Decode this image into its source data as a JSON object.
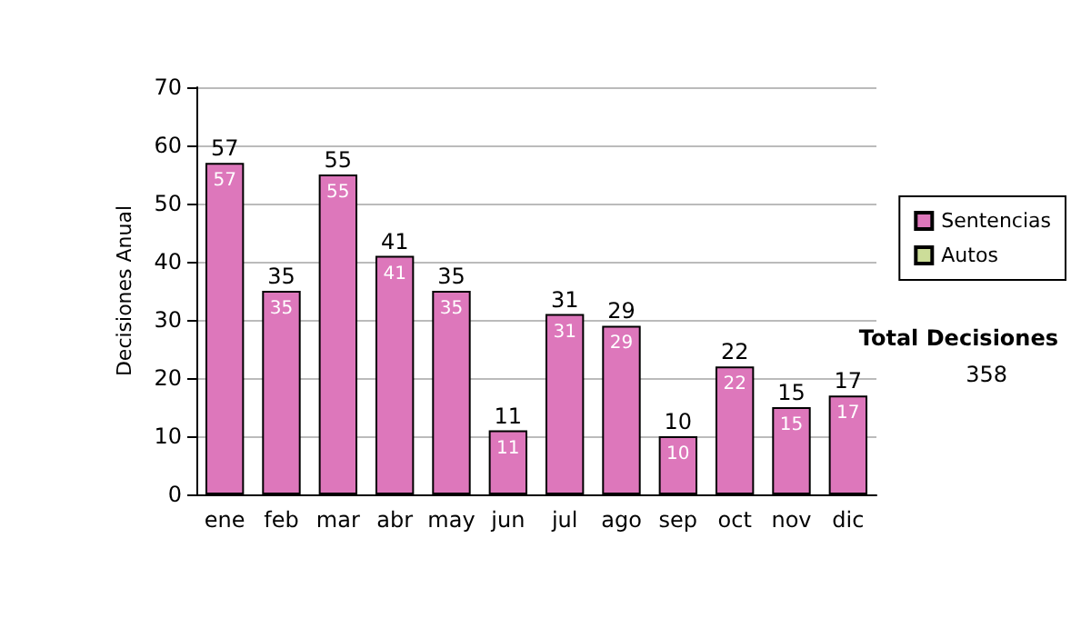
{
  "chart_data": {
    "type": "bar",
    "stacked": true,
    "ylabel": "Decisiones Anual",
    "categories": [
      "ene",
      "feb",
      "mar",
      "abr",
      "may",
      "jun",
      "jul",
      "ago",
      "sep",
      "oct",
      "nov",
      "dic"
    ],
    "series": [
      {
        "name": "Sentencias",
        "color": "#dd77bb",
        "values": [
          57,
          35,
          55,
          41,
          35,
          11,
          31,
          29,
          10,
          22,
          15,
          17
        ],
        "value_labels": [
          "57",
          "35",
          "55",
          "41",
          "35",
          "11",
          "31",
          "29",
          "10",
          "22",
          "15",
          "17"
        ]
      },
      {
        "name": "Autos",
        "color": "#ccdd99",
        "values": [
          null,
          null,
          null,
          null,
          null,
          null,
          null,
          null,
          null,
          null,
          null,
          null
        ]
      }
    ],
    "totals": [
      "57",
      "35",
      "55",
      "41",
      "35",
      "11",
      "31",
      "29",
      "10",
      "22",
      "15",
      "17"
    ],
    "ylim": [
      0,
      70
    ],
    "yticks": [
      0,
      10,
      20,
      30,
      40,
      50,
      60,
      70
    ],
    "grid": "y",
    "legend": "right",
    "annotations": [
      "Total Decisiones",
      "358"
    ]
  }
}
